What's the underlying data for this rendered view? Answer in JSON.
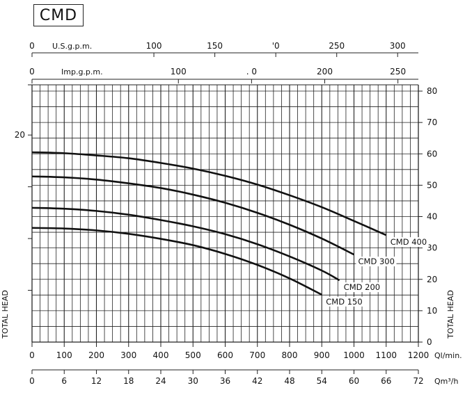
{
  "chart_data": {
    "type": "line",
    "title": "CMD",
    "grid": true,
    "x_axis_primary": {
      "label": "Ql/min.",
      "range": [
        0,
        1200
      ],
      "ticks": [
        "0",
        "100",
        "200",
        "300",
        "400",
        "500",
        "600",
        "700",
        "800",
        "900",
        "1000",
        "1100",
        "1200"
      ]
    },
    "x_axis_m3h": {
      "label": "Qm³/h",
      "ticks": [
        "0",
        "6",
        "12",
        "18",
        "24",
        "30",
        "36",
        "42",
        "48",
        "54",
        "60",
        "66",
        "72"
      ]
    },
    "x_axis_usgpm": {
      "label": "U.S.g.p.m.",
      "ticks": [
        "0",
        "100",
        "150",
        "'0",
        "250",
        "300"
      ],
      "positions_lmin": [
        0,
        378.5,
        567.8,
        757.1,
        946.4,
        1135.6
      ]
    },
    "x_axis_impgpm": {
      "label": "Imp.g.p.m.",
      "ticks": [
        "0",
        "100",
        ". 0",
        "200",
        "250"
      ],
      "positions_lmin": [
        0,
        454.6,
        681.9,
        909.2,
        1136.5
      ]
    },
    "y_axis_right": {
      "label": "TOTAL HEAD",
      "range": [
        0,
        82
      ],
      "ticks": [
        "0",
        "10",
        "20",
        "30",
        "40",
        "50",
        "60",
        "70",
        "80"
      ]
    },
    "y_axis_left": {
      "label": "TOTAL HEAD",
      "ticks": [
        "20"
      ],
      "tick_values_right_units": [
        66
      ]
    },
    "series": [
      {
        "name": "CMD 400",
        "x": [
          0,
          100,
          200,
          300,
          400,
          500,
          600,
          700,
          800,
          900,
          1000,
          1100
        ],
        "y": [
          60.5,
          60.2,
          59.5,
          58.6,
          57.1,
          55.3,
          53.0,
          50.2,
          46.8,
          43.0,
          38.6,
          34.1
        ]
      },
      {
        "name": "CMD 300",
        "x": [
          0,
          100,
          200,
          300,
          400,
          500,
          600,
          700,
          800,
          900,
          1000
        ],
        "y": [
          52.8,
          52.5,
          51.8,
          50.6,
          49.1,
          47.0,
          44.4,
          41.2,
          37.4,
          33.0,
          27.9
        ]
      },
      {
        "name": "CMD 200",
        "x": [
          0,
          100,
          200,
          300,
          400,
          500,
          600,
          700,
          800,
          900,
          955
        ],
        "y": [
          42.8,
          42.5,
          41.8,
          40.6,
          38.9,
          36.9,
          34.4,
          31.2,
          27.3,
          22.8,
          19.7
        ]
      },
      {
        "name": "CMD 150",
        "x": [
          0,
          100,
          200,
          300,
          400,
          500,
          600,
          700,
          800,
          900
        ],
        "y": [
          36.4,
          36.2,
          35.6,
          34.5,
          32.9,
          30.9,
          28.1,
          24.6,
          20.3,
          15.1
        ]
      }
    ]
  }
}
